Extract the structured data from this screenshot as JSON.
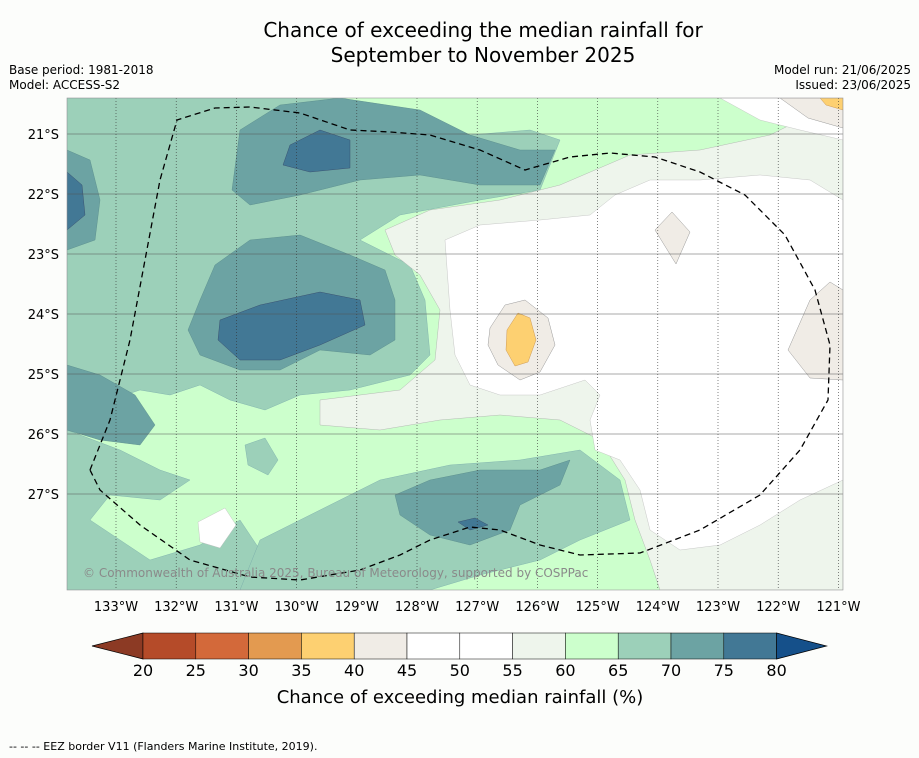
{
  "title_line1": "Chance of exceeding the median rainfall for",
  "title_line2": "September to November 2025",
  "base_period": "Base period: 1981-2018",
  "model": "Model: ACCESS-S2",
  "model_run": "Model run: 21/06/2025",
  "issued": "Issued: 23/06/2025",
  "copyright": "© Commonwealth of Australia 2025, Bureau of Meteorology, supported by COSPPac",
  "footer": "--  --  -- EEZ border V11 (Flanders Marine Institute, 2019).",
  "map": {
    "lon_labels": [
      "133°W",
      "132°W",
      "131°W",
      "130°W",
      "129°W",
      "128°W",
      "127°W",
      "126°W",
      "125°W",
      "124°W",
      "123°W",
      "122°W",
      "121°W"
    ],
    "lat_labels": [
      "21°S",
      "22°S",
      "23°S",
      "24°S",
      "25°S",
      "26°S",
      "27°S"
    ]
  },
  "legend": {
    "title": "Chance of exceeding median rainfall (%)",
    "ticks": [
      "20",
      "25",
      "30",
      "35",
      "40",
      "45",
      "50",
      "55",
      "60",
      "65",
      "70",
      "75",
      "80"
    ],
    "colors": [
      "#8c3a24",
      "#b54b29",
      "#d3693a",
      "#e39a50",
      "#fdd071",
      "#f0ece6",
      "#ffffff",
      "#ffffff",
      "#eef5ec",
      "#ccffcc",
      "#9cd0b9",
      "#6ca3a3",
      "#427895",
      "#15508a"
    ]
  },
  "colors": {
    "c45": "#f0ece6",
    "c55": "#eef5ec",
    "c60": "#ccffcc",
    "c65": "#9cd0b9",
    "c70": "#6ca3a3",
    "c75": "#427895",
    "c35": "#fdd071"
  }
}
